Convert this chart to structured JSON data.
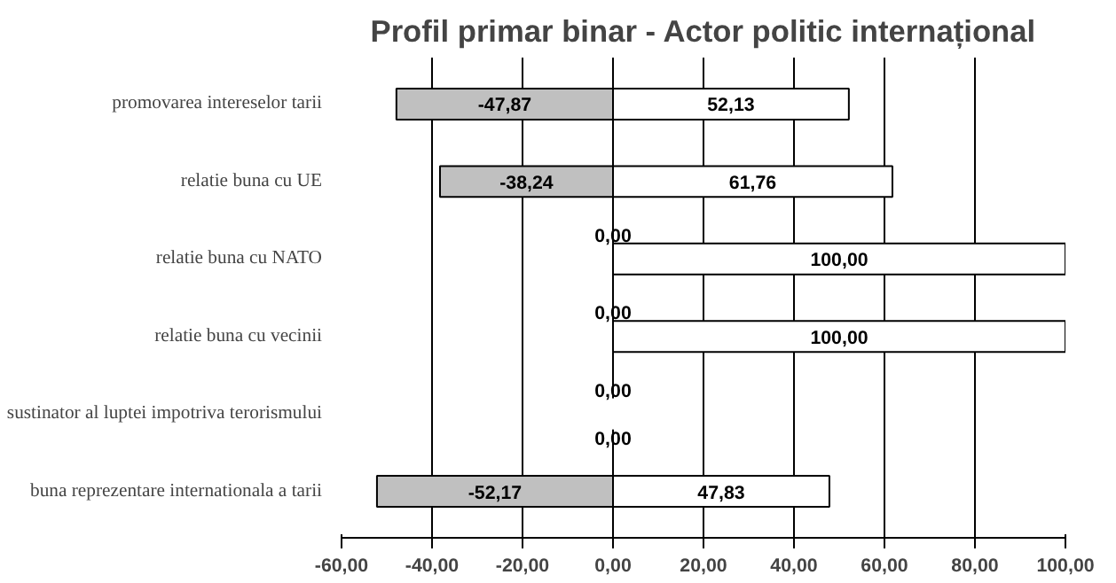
{
  "chart_data": {
    "type": "bar",
    "orientation": "horizontal",
    "title": "Profil primar binar - Actor politic internațional",
    "categories": [
      "promovarea intereselor tarii",
      "relatie buna cu UE",
      "relatie buna cu NATO",
      "relatie buna cu vecinii",
      "sustinator al luptei impotriva terorismului",
      "buna reprezentare internationala a tarii"
    ],
    "series": [
      {
        "color": "#c0c0c0",
        "values": [
          -47.87,
          -38.24,
          0,
          0,
          0,
          -52.17
        ],
        "value_labels": [
          "-47,87",
          "-38,24",
          "0,00",
          "0,00",
          "0,00",
          "-52,17"
        ]
      },
      {
        "color": "#ffffff",
        "values": [
          52.13,
          61.76,
          100,
          100,
          0,
          47.83
        ],
        "value_labels": [
          "52,13",
          "61,76",
          "100,00",
          "100,00",
          "0,00",
          "47,83"
        ]
      }
    ],
    "xlim": [
      -60,
      100
    ],
    "xticks": [
      {
        "value": -60,
        "label": "-60,00"
      },
      {
        "value": -40,
        "label": "-40,00"
      },
      {
        "value": -20,
        "label": "-20,00"
      },
      {
        "value": 0,
        "label": "0,00"
      },
      {
        "value": 20,
        "label": "20,00"
      },
      {
        "value": 40,
        "label": "40,00"
      },
      {
        "value": 60,
        "label": "60,00"
      },
      {
        "value": 80,
        "label": "80,00"
      },
      {
        "value": 100,
        "label": "100,00"
      }
    ],
    "stacked": true,
    "grid": "x"
  }
}
